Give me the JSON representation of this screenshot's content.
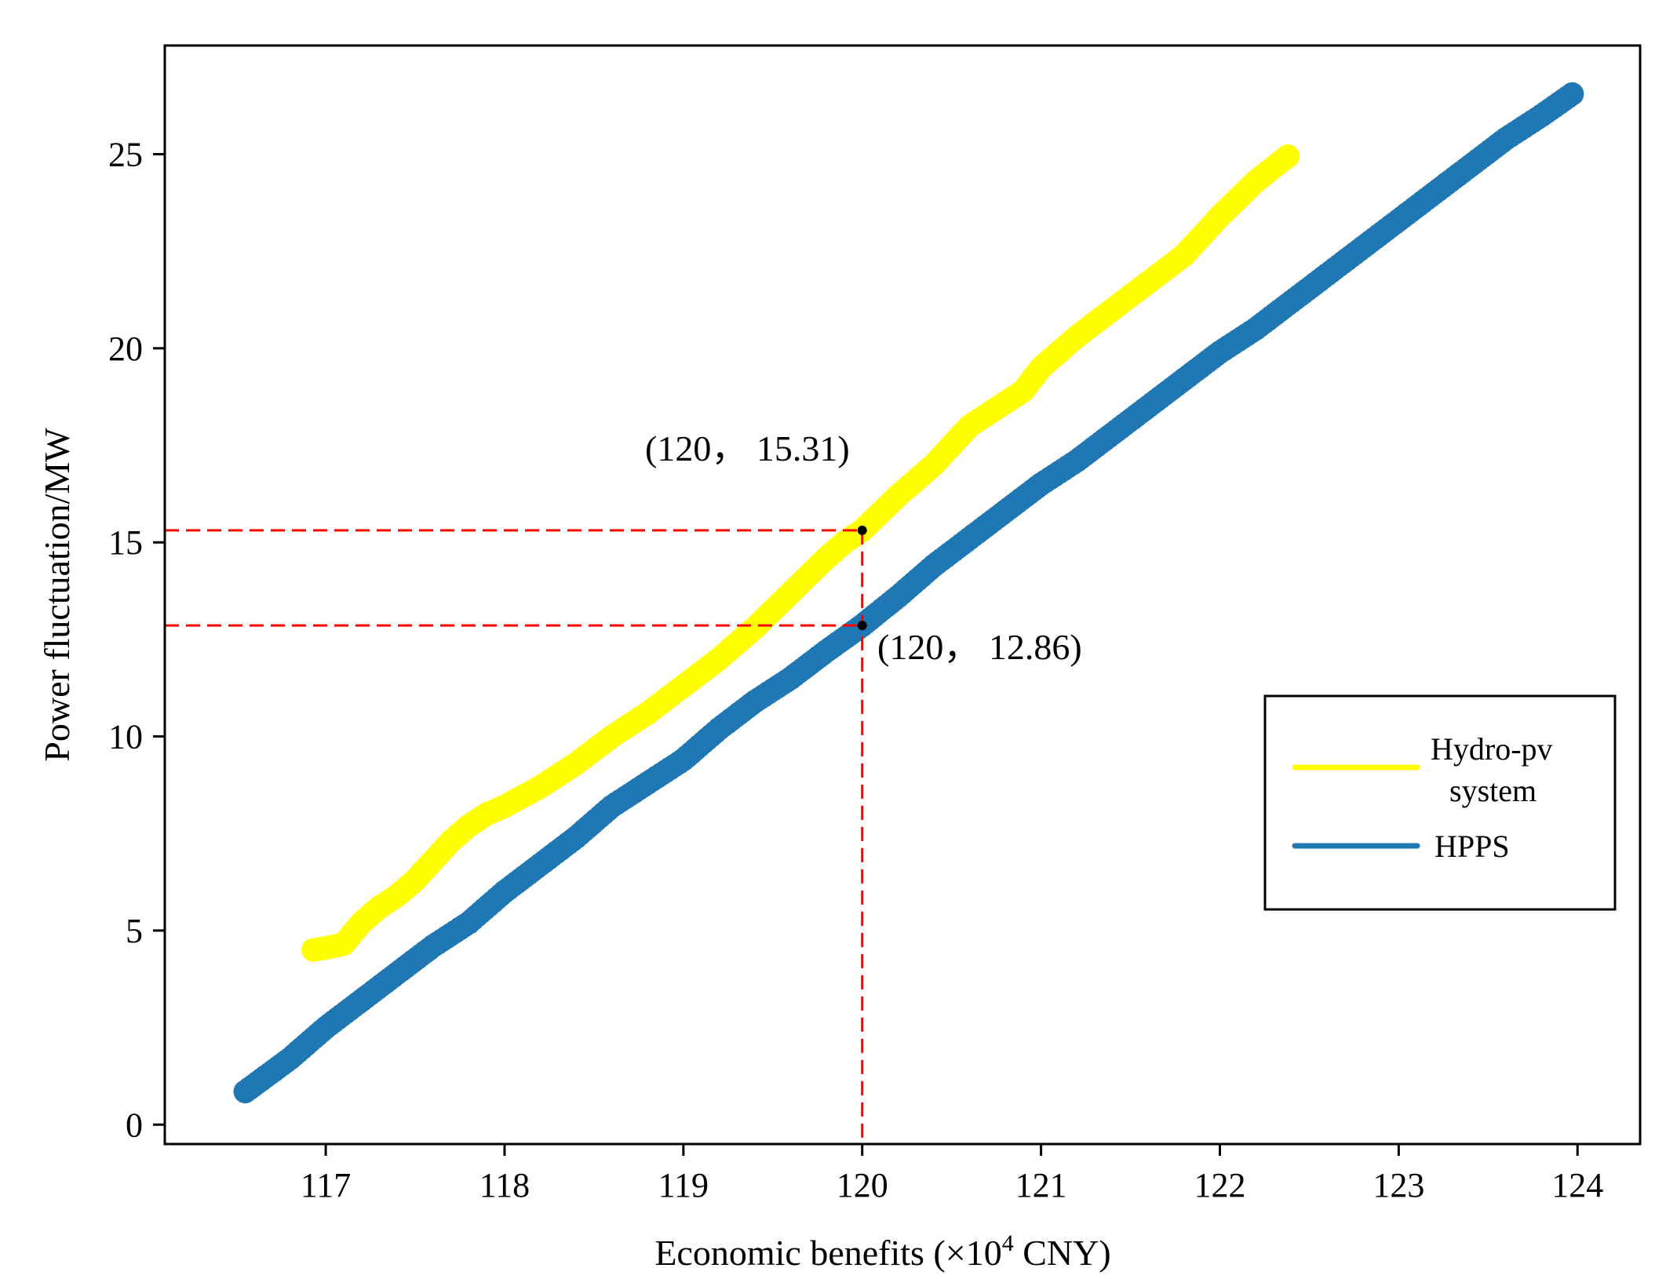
{
  "chart_data": {
    "type": "scatter",
    "xlabel_main": "Economic benefits (×10",
    "xlabel_sup": "4",
    "xlabel_tail": " CNY)",
    "ylabel": "Power fluctuation/MW",
    "xlim": [
      116.1,
      124.35
    ],
    "ylim": [
      -0.5,
      27.8
    ],
    "x_ticks": [
      117,
      118,
      119,
      120,
      121,
      122,
      123,
      124
    ],
    "y_ticks": [
      0,
      5,
      10,
      15,
      20,
      25
    ],
    "grid": false,
    "legend_position": "center-right",
    "series": [
      {
        "name": "Hydro-pv system",
        "color": "#ffff00",
        "x": [
          116.93,
          117.0,
          117.1,
          117.2,
          117.3,
          117.4,
          117.5,
          117.6,
          117.7,
          117.8,
          117.9,
          118.0,
          118.2,
          118.4,
          118.6,
          118.8,
          119.0,
          119.2,
          119.4,
          119.6,
          119.8,
          119.9,
          120.0,
          120.2,
          120.4,
          120.6,
          120.8,
          120.9,
          121.0,
          121.2,
          121.4,
          121.6,
          121.8,
          122.0,
          122.2,
          122.38
        ],
        "y": [
          4.5,
          4.55,
          4.65,
          5.2,
          5.6,
          5.9,
          6.3,
          6.8,
          7.3,
          7.7,
          8.0,
          8.2,
          8.7,
          9.3,
          10.0,
          10.6,
          11.3,
          12.0,
          12.8,
          13.7,
          14.6,
          15.0,
          15.31,
          16.2,
          17.0,
          18.0,
          18.6,
          18.9,
          19.5,
          20.3,
          21.0,
          21.7,
          22.4,
          23.4,
          24.3,
          24.95
        ]
      },
      {
        "name": "HPPS",
        "color": "#1f77b4",
        "x": [
          116.55,
          116.8,
          117.0,
          117.2,
          117.4,
          117.6,
          117.8,
          118.0,
          118.2,
          118.4,
          118.6,
          118.8,
          119.0,
          119.2,
          119.4,
          119.6,
          119.8,
          120.0,
          120.2,
          120.4,
          120.6,
          120.8,
          121.0,
          121.2,
          121.4,
          121.6,
          121.8,
          122.0,
          122.2,
          122.4,
          122.6,
          122.8,
          123.0,
          123.2,
          123.4,
          123.6,
          123.8,
          123.97
        ],
        "y": [
          0.85,
          1.7,
          2.5,
          3.2,
          3.9,
          4.6,
          5.2,
          6.0,
          6.7,
          7.4,
          8.2,
          8.8,
          9.4,
          10.2,
          10.9,
          11.5,
          12.2,
          12.86,
          13.6,
          14.4,
          15.1,
          15.8,
          16.5,
          17.1,
          17.8,
          18.5,
          19.2,
          19.9,
          20.5,
          21.2,
          21.9,
          22.6,
          23.3,
          24.0,
          24.7,
          25.4,
          26.0,
          26.55
        ]
      }
    ],
    "annotations": [
      {
        "text": "(120，  15.31)",
        "x": 120,
        "y": 15.31
      },
      {
        "text": "(120，  12.86)",
        "x": 120,
        "y": 12.86
      }
    ],
    "reference_color": "#ff0000"
  }
}
